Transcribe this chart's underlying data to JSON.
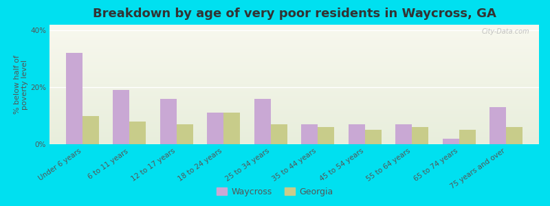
{
  "title": "Breakdown by age of very poor residents in Waycross, GA",
  "ylabel": "% below half of\npoverty level",
  "categories": [
    "Under 6 years",
    "6 to 11 years",
    "12 to 17 years",
    "18 to 24 years",
    "25 to 34 years",
    "35 to 44 years",
    "45 to 54 years",
    "55 to 64 years",
    "65 to 74 years",
    "75 years and over"
  ],
  "waycross_values": [
    32,
    19,
    16,
    11,
    16,
    7,
    7,
    7,
    2,
    13
  ],
  "georgia_values": [
    10,
    8,
    7,
    11,
    7,
    6,
    5,
    6,
    5,
    6
  ],
  "waycross_color": "#c9a8d4",
  "georgia_color": "#c8cc8a",
  "waycross_label": "Waycross",
  "georgia_label": "Georgia",
  "ylim": [
    0,
    42
  ],
  "yticks": [
    0,
    20,
    40
  ],
  "ytick_labels": [
    "0%",
    "20%",
    "40%"
  ],
  "background_outer": "#00e0f0",
  "background_plot_top": "#f8f8ee",
  "background_plot_bottom": "#e8eedc",
  "title_fontsize": 13,
  "axis_label_fontsize": 8,
  "tick_label_fontsize": 7.5,
  "bar_width": 0.35,
  "watermark": "City-Data.com"
}
